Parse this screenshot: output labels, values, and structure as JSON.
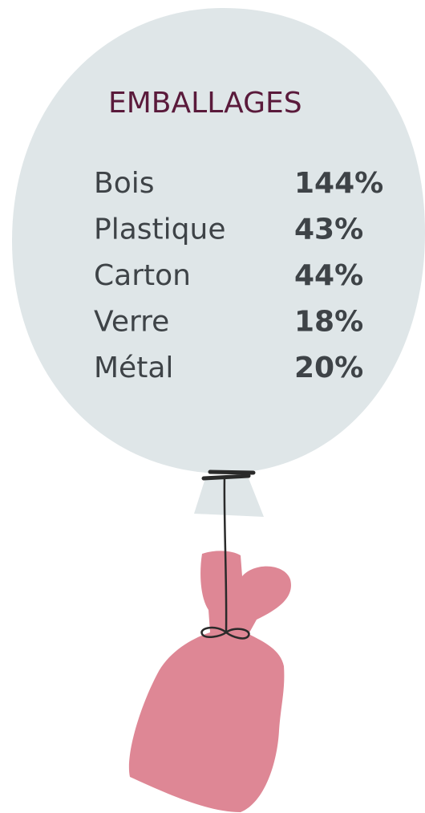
{
  "title": "EMBALLAGES",
  "rows": [
    {
      "label": "Bois",
      "value": "144%"
    },
    {
      "label": "Plastique",
      "value": "43%"
    },
    {
      "label": "Carton",
      "value": "44%"
    },
    {
      "label": "Verre",
      "value": "18%"
    },
    {
      "label": "Métal",
      "value": "20%"
    }
  ]
}
